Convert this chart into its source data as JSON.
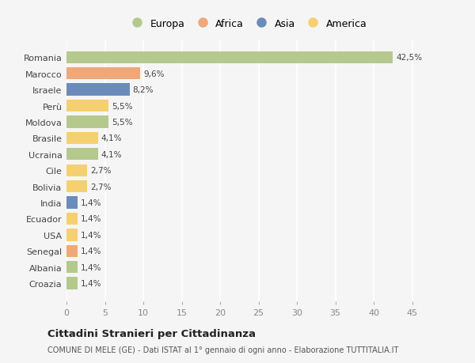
{
  "countries": [
    "Romania",
    "Marocco",
    "Israele",
    "Perù",
    "Moldova",
    "Brasile",
    "Ucraina",
    "Cile",
    "Bolivia",
    "India",
    "Ecuador",
    "USA",
    "Senegal",
    "Albania",
    "Croazia"
  ],
  "values": [
    42.5,
    9.6,
    8.2,
    5.5,
    5.5,
    4.1,
    4.1,
    2.7,
    2.7,
    1.4,
    1.4,
    1.4,
    1.4,
    1.4,
    1.4
  ],
  "labels": [
    "42,5%",
    "9,6%",
    "8,2%",
    "5,5%",
    "5,5%",
    "4,1%",
    "4,1%",
    "2,7%",
    "2,7%",
    "1,4%",
    "1,4%",
    "1,4%",
    "1,4%",
    "1,4%",
    "1,4%"
  ],
  "continent": [
    "Europa",
    "Africa",
    "Asia",
    "America",
    "Europa",
    "America",
    "Europa",
    "America",
    "America",
    "Asia",
    "America",
    "America",
    "Africa",
    "Europa",
    "Europa"
  ],
  "colors": {
    "Europa": "#b5c98e",
    "Africa": "#f0a878",
    "Asia": "#6b8cba",
    "America": "#f5d070"
  },
  "legend_order": [
    "Europa",
    "Africa",
    "Asia",
    "America"
  ],
  "title": "Cittadini Stranieri per Cittadinanza",
  "subtitle": "COMUNE DI MELE (GE) - Dati ISTAT al 1° gennaio di ogni anno - Elaborazione TUTTITALIA.IT",
  "xlim": [
    0,
    47
  ],
  "xticks": [
    0,
    5,
    10,
    15,
    20,
    25,
    30,
    35,
    40,
    45
  ],
  "bg_color": "#f5f5f5",
  "grid_color": "#e8e8e8"
}
